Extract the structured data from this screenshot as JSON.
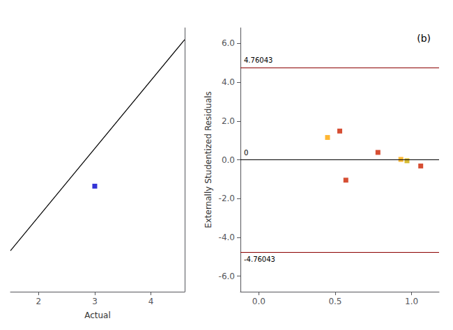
{
  "chart_data": [
    {
      "type": "line",
      "xlabel": "Actual",
      "xlim": [
        1.5,
        4.6
      ],
      "ylim": [
        1.5,
        6.0
      ],
      "xticks": [
        2,
        3,
        4
      ],
      "yticks": [],
      "tick_labels": "x",
      "grid": false,
      "series": [
        {
          "type": "line",
          "color": "#000000",
          "x": [
            1.5,
            4.6
          ],
          "values": [
            2.2,
            5.8
          ]
        },
        {
          "type": "scatter",
          "color": "#0000CC",
          "marker": "square",
          "x": [
            3.0
          ],
          "values": [
            3.3
          ]
        }
      ]
    },
    {
      "type": "scatter",
      "ylabel": "Externally Studentized Residuals",
      "xlim": [
        -0.12,
        1.18
      ],
      "ylim": [
        -6.8,
        6.8
      ],
      "xticks": [
        {
          "value": 0,
          "label": "0.0"
        },
        {
          "value": 0.5,
          "label": "0.5"
        },
        {
          "value": 1,
          "label": "1.0"
        }
      ],
      "yticks": [
        {
          "value": -6.0,
          "label": "-6.0"
        },
        {
          "value": -4.0,
          "label": "-4.0"
        },
        {
          "value": -2.0,
          "label": "-2.0"
        },
        {
          "value": 0.0,
          "label": "0.0"
        },
        {
          "value": 2.0,
          "label": "2.0"
        },
        {
          "value": 4.0,
          "label": "4.0"
        },
        {
          "value": 6.0,
          "label": "6.0"
        }
      ],
      "grid": false,
      "series": [
        {
          "type": "scatter",
          "marker": "square",
          "x": [
            0.45,
            0.53,
            0.57,
            0.78,
            0.93,
            0.97,
            1.06
          ],
          "values": [
            1.15,
            1.48,
            -1.05,
            0.38,
            0.02,
            -0.05,
            -0.32
          ],
          "colors": [
            "#FFA500",
            "#CC2200",
            "#CC2200",
            "#CC2200",
            "#FFA500",
            "#CCAA00",
            "#CC2200"
          ]
        }
      ],
      "reference_lines": [
        {
          "y": 4.76043,
          "label": "4.76043",
          "color": "#8B0000"
        },
        {
          "y": -4.76043,
          "label": "-4.76043",
          "color": "#8B0000"
        },
        {
          "y": 0,
          "label": "0",
          "color": "#000000"
        }
      ],
      "annotations": [
        {
          "text": "(b)"
        }
      ]
    }
  ]
}
